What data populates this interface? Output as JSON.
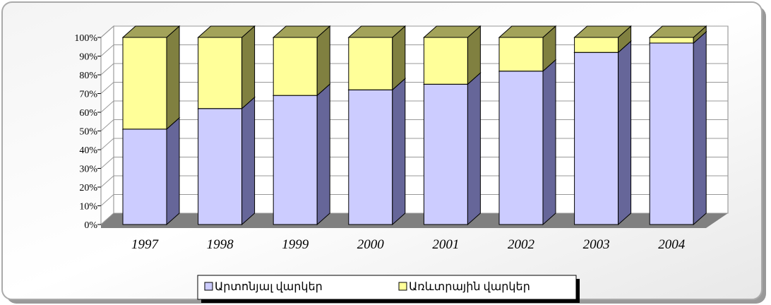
{
  "chart_data": {
    "type": "bar3d_stacked",
    "categories": [
      "1997",
      "1998",
      "1999",
      "2000",
      "2001",
      "2002",
      "2003",
      "2004"
    ],
    "series": [
      {
        "name": "Արտոնյալ վարկեր",
        "color": "#ccccff",
        "side": "#666699",
        "top": "#9999cc",
        "values": [
          51,
          62,
          69,
          72,
          75,
          82,
          92,
          97
        ]
      },
      {
        "name": "Առևտրային վարկեր",
        "color": "#ffff99",
        "side": "#808040",
        "top": "#a3a35a",
        "values": [
          49,
          38,
          31,
          28,
          25,
          18,
          8,
          3
        ]
      }
    ],
    "ylim": [
      0,
      100
    ],
    "yticks": [
      {
        "value": 0,
        "label": "0%"
      },
      {
        "value": 10,
        "label": "10%"
      },
      {
        "value": 20,
        "label": "20%"
      },
      {
        "value": 30,
        "label": "30%"
      },
      {
        "value": 40,
        "label": "40%"
      },
      {
        "value": 50,
        "label": "50%"
      },
      {
        "value": 60,
        "label": "60%"
      },
      {
        "value": 70,
        "label": "70%"
      },
      {
        "value": 80,
        "label": "80%"
      },
      {
        "value": 90,
        "label": "90%"
      },
      {
        "value": 100,
        "label": "100%"
      }
    ],
    "grid": true,
    "legend": "bottom"
  }
}
